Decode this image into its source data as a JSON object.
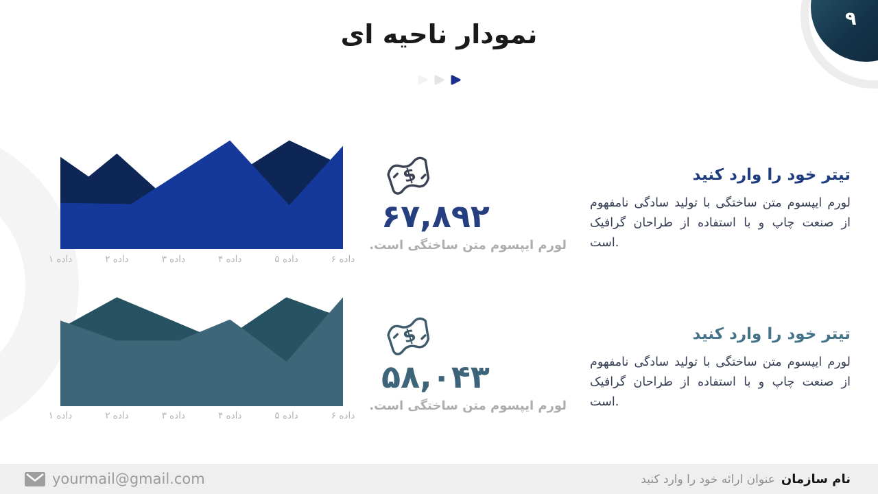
{
  "slide": {
    "title": "نمودار ناحیه ای",
    "page_number": "۹"
  },
  "progress_dots": {
    "colors": [
      "#f3f3f3",
      "#e4e4e4",
      "#1b2f8e"
    ]
  },
  "chart_data": [
    {
      "type": "area",
      "name": "area-chart-1",
      "categories": [
        "داده ۱",
        "داده ۲",
        "داده ۳",
        "داده ۴",
        "داده ۵",
        "داده ۶"
      ],
      "grid": false,
      "legend": "none",
      "note": "values are percent of plot height at percent of plot width",
      "series": [
        {
          "name": "back-series",
          "color": "#0d2656",
          "points": [
            [
              0,
              84
            ],
            [
              10,
              66
            ],
            [
              20,
              87
            ],
            [
              36,
              50
            ],
            [
              51,
              50
            ],
            [
              81,
              99
            ],
            [
              95,
              82
            ],
            [
              100,
              74
            ]
          ]
        },
        {
          "name": "front-series",
          "color": "#14399b",
          "points": [
            [
              0,
              42
            ],
            [
              25,
              41
            ],
            [
              60,
              99
            ],
            [
              81,
              40
            ],
            [
              100,
              94
            ]
          ]
        }
      ]
    },
    {
      "type": "area",
      "name": "area-chart-2",
      "categories": [
        "داده ۱",
        "داده ۲",
        "داده ۳",
        "داده ۴",
        "داده ۵",
        "داده ۶"
      ],
      "grid": false,
      "legend": "none",
      "note": "values are percent of plot height at percent of plot width",
      "series": [
        {
          "name": "back-series",
          "color": "#265261",
          "points": [
            [
              0,
              70
            ],
            [
              20,
              98
            ],
            [
              49,
              67
            ],
            [
              59,
              62
            ],
            [
              80,
              98
            ],
            [
              94,
              85
            ],
            [
              100,
              80
            ]
          ]
        },
        {
          "name": "front-series",
          "color": "#3d6778",
          "points": [
            [
              0,
              77
            ],
            [
              8,
              70
            ],
            [
              20,
              59
            ],
            [
              42,
              59
            ],
            [
              60,
              78
            ],
            [
              66,
              67
            ],
            [
              80,
              40
            ],
            [
              100,
              98
            ]
          ]
        }
      ]
    }
  ],
  "stats": [
    {
      "icon": "dollar-banknote-icon",
      "icon_color": "#3a4254",
      "value": "۶۷,۸۹۲",
      "value_color": "#243e7f",
      "caption": "لورم ایپسوم متن ساختگی است."
    },
    {
      "icon": "dollar-banknote-icon",
      "icon_color": "#3e5b6b",
      "value": "۵۸,۰۴۳",
      "value_color": "#3d6478",
      "caption": "لورم ایپسوم متن ساختگی است."
    }
  ],
  "text_blocks": [
    {
      "title": "تیتر خود را وارد کنید",
      "title_color": "#1f3c7e",
      "body": "لورم ایپسوم متن ساختگی با تولید سادگی نامفهوم از صنعت چاپ و با استفاده از طراحان گرافیک است."
    },
    {
      "title": "تیتر خود را وارد کنید",
      "title_color": "#457389",
      "body": "لورم ایپسوم متن ساختگی با تولید سادگی نامفهوم از صنعت چاپ و با استفاده از طراحان گرافیک است."
    }
  ],
  "footer": {
    "email": "yourmail@gmail.com",
    "org_name": "نام سازمان",
    "presentation_title": "عنوان ارائه خود را وارد کنید"
  }
}
